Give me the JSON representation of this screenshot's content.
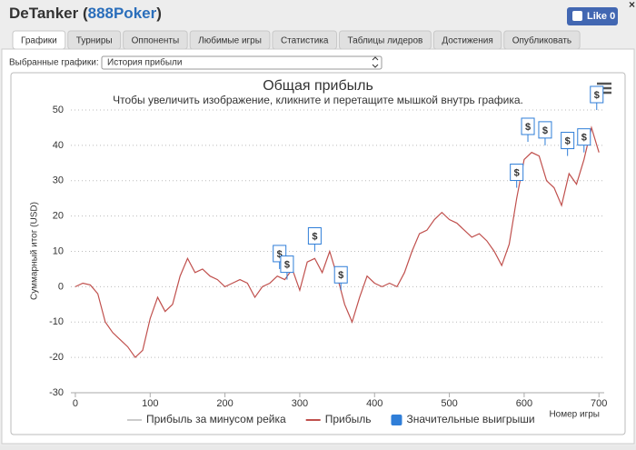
{
  "header": {
    "title": [
      "DeTanker (",
      "888Poker",
      ")"
    ],
    "close": "×",
    "like": "Like",
    "like_count": 0
  },
  "tabs": [
    "Графики",
    "Турниры",
    "Оппоненты",
    "Любимые игры",
    "Статистика",
    "Таблицы лидеров",
    "Достижения",
    "Опубликовать"
  ],
  "selector": {
    "label": "Выбранные графики:",
    "value": "История прибыли"
  },
  "chart_data": {
    "type": "line",
    "title": "Общая прибыль",
    "subtitle": "Чтобы увеличить изображение, кликните и перетащите мышкой внутрь графика.",
    "xlabel": "Номер игры",
    "ylabel": "Суммарный итог (USD)",
    "xlim": [
      -6,
      707
    ],
    "xticks": [
      0,
      100,
      200,
      300,
      400,
      500,
      600,
      700
    ],
    "ylim": [
      -30,
      50
    ],
    "yticks": [
      -30,
      -20,
      -10,
      0,
      10,
      20,
      30,
      40,
      50
    ],
    "grid": true,
    "x": [
      0,
      10,
      20,
      30,
      40,
      50,
      60,
      70,
      80,
      90,
      100,
      110,
      120,
      130,
      140,
      150,
      160,
      170,
      180,
      190,
      200,
      210,
      220,
      230,
      240,
      250,
      260,
      270,
      280,
      290,
      300,
      310,
      320,
      330,
      340,
      350,
      360,
      370,
      380,
      390,
      400,
      410,
      420,
      430,
      440,
      450,
      460,
      470,
      480,
      490,
      500,
      510,
      520,
      530,
      540,
      550,
      560,
      570,
      580,
      590,
      600,
      610,
      620,
      630,
      640,
      650,
      660,
      670,
      680,
      690,
      700
    ],
    "series": [
      {
        "name": "Прибыль за минусом рейка",
        "color": "#cccccc",
        "hidden": true
      },
      {
        "name": "Прибыль",
        "color": "#c0504d",
        "values": [
          0,
          1,
          0.5,
          -2,
          -10,
          -13,
          -15,
          -17,
          -20,
          -18,
          -9,
          -3,
          -7,
          -5,
          3,
          8,
          4,
          5,
          3,
          2,
          0,
          1,
          2,
          1,
          -3,
          0,
          1,
          3,
          2,
          5,
          -1,
          7,
          8,
          4,
          10,
          3,
          -5,
          -10,
          -3,
          3,
          1,
          0,
          1,
          0,
          4,
          10,
          15,
          16,
          19,
          21,
          19,
          18,
          16,
          14,
          15,
          13,
          10,
          6,
          12,
          25,
          36,
          38,
          37,
          30,
          28,
          23,
          32,
          29,
          36,
          45,
          38
        ]
      }
    ],
    "significant_wins": {
      "name": "Значительные выигрыши",
      "color": "#2f7ed8",
      "label": "$",
      "x": [
        273,
        283,
        320,
        355,
        590,
        605,
        628,
        658,
        680,
        697
      ],
      "values": [
        5,
        2,
        10,
        -1,
        28,
        41,
        40,
        37,
        38,
        50
      ]
    }
  }
}
